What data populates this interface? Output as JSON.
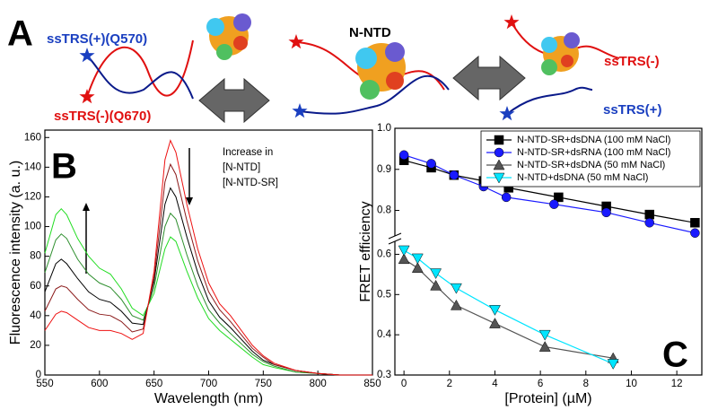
{
  "panel_a": {
    "letter": "A",
    "left_top_label": "ssTRS(+)(Q570)",
    "left_bottom_label": "ssTRS(-)(Q670)",
    "center_label": "N-NTD",
    "right_top_label": "ssTRS(-)",
    "right_bottom_label": "ssTRS(+)"
  },
  "chart_data": [
    {
      "type": "line",
      "letter": "B",
      "annotation": [
        "Increase in",
        "[N-NTD]",
        "[N-NTD-SR]"
      ],
      "x_label": "Wavelength (nm)",
      "y_label": "Fluorescence intensity (a. u.)",
      "xlim": [
        550,
        850
      ],
      "xticks": [
        550,
        600,
        650,
        700,
        750,
        800,
        850
      ],
      "ylim": [
        0,
        165
      ],
      "yticks": [
        0,
        20,
        40,
        60,
        80,
        100,
        120,
        140,
        160
      ],
      "x": [
        550,
        560,
        565,
        570,
        580,
        590,
        600,
        610,
        620,
        630,
        640,
        650,
        660,
        665,
        670,
        680,
        690,
        700,
        710,
        720,
        730,
        740,
        750,
        760,
        780,
        800,
        820,
        850
      ],
      "series": [
        {
          "color": "#22dd22",
          "values": [
            82,
            108,
            112,
            108,
            92,
            80,
            72,
            68,
            58,
            45,
            40,
            55,
            85,
            93,
            90,
            70,
            52,
            38,
            30,
            24,
            18,
            12,
            7,
            5,
            2,
            1,
            0,
            0
          ]
        },
        {
          "color": "#2f8f2f",
          "values": [
            69,
            91,
            95,
            92,
            78,
            68,
            62,
            59,
            51,
            40,
            37,
            59,
            100,
            109,
            105,
            81,
            60,
            44,
            35,
            28,
            21,
            14,
            9,
            6,
            2,
            1,
            0,
            0
          ]
        },
        {
          "color": "#000000",
          "values": [
            56,
            75,
            78,
            75,
            65,
            56,
            51,
            49,
            43,
            35,
            34,
            63,
            115,
            126,
            120,
            93,
            69,
            50,
            39,
            32,
            24,
            16,
            10,
            7,
            3,
            1,
            0,
            0
          ]
        },
        {
          "color": "#8b1a1a",
          "values": [
            43,
            58,
            60,
            59,
            51,
            44,
            41,
            40,
            36,
            29,
            31,
            66,
            130,
            142,
            135,
            104,
            77,
            56,
            44,
            36,
            27,
            18,
            12,
            7,
            3,
            1,
            0,
            0
          ]
        },
        {
          "color": "#ee1111",
          "values": [
            30,
            41,
            43,
            42,
            37,
            32,
            30,
            30,
            28,
            24,
            28,
            70,
            145,
            158,
            150,
            115,
            85,
            62,
            48,
            40,
            30,
            20,
            13,
            8,
            3,
            1,
            0,
            0
          ]
        }
      ]
    },
    {
      "type": "line",
      "letter": "C",
      "x_label": "[Protein] (µM)",
      "y_label": "FRET efficiency",
      "xlim": [
        -0.4,
        13.1
      ],
      "xticks": [
        0,
        2,
        4,
        6,
        8,
        10,
        12
      ],
      "y_segments": [
        {
          "ylim": [
            0.3,
            0.63
          ],
          "yticks": [
            0.3,
            0.4,
            0.5,
            0.6
          ]
        },
        {
          "ylim": [
            0.74,
            1.0
          ],
          "yticks": [
            0.8,
            0.9,
            {
              "value": 1.0,
              "label": "1.0"
            }
          ]
        }
      ],
      "legend": "upper right",
      "series": [
        {
          "name": "N-NTD-SR+dsDNA (100 mM NaCl)",
          "color": "#000000",
          "marker": "square",
          "x": [
            0,
            1.2,
            2.2,
            3.5,
            4.6,
            6.8,
            8.9,
            10.8,
            12.8
          ],
          "values": [
            0.922,
            0.904,
            0.886,
            0.872,
            0.855,
            0.832,
            0.81,
            0.79,
            0.77
          ]
        },
        {
          "name": "N-NTD-SR+dsRNA (100 mM NaCl)",
          "color": "#1a1aff",
          "marker": "circle",
          "x": [
            0,
            1.2,
            2.2,
            3.5,
            4.5,
            6.6,
            8.9,
            10.8,
            12.8
          ],
          "values": [
            0.935,
            0.914,
            0.886,
            0.858,
            0.832,
            0.815,
            0.795,
            0.77,
            0.745
          ]
        },
        {
          "name": "N-NTD-SR+dsDNA (50 mM NaCl)",
          "color": "#555555",
          "marker": "triangle-up",
          "x": [
            0,
            0.6,
            1.4,
            2.3,
            4,
            6.2,
            9.2
          ],
          "values": [
            0.588,
            0.566,
            0.522,
            0.473,
            0.428,
            0.37,
            0.342
          ]
        },
        {
          "name": "N-NTD+dsDNA (50 mM NaCl)",
          "color": "#00e5ff",
          "marker": "triangle-down",
          "x": [
            0,
            0.6,
            1.4,
            2.3,
            4,
            6.2,
            9.2
          ],
          "values": [
            0.61,
            0.59,
            0.553,
            0.516,
            0.462,
            0.4,
            0.328
          ]
        }
      ]
    }
  ]
}
